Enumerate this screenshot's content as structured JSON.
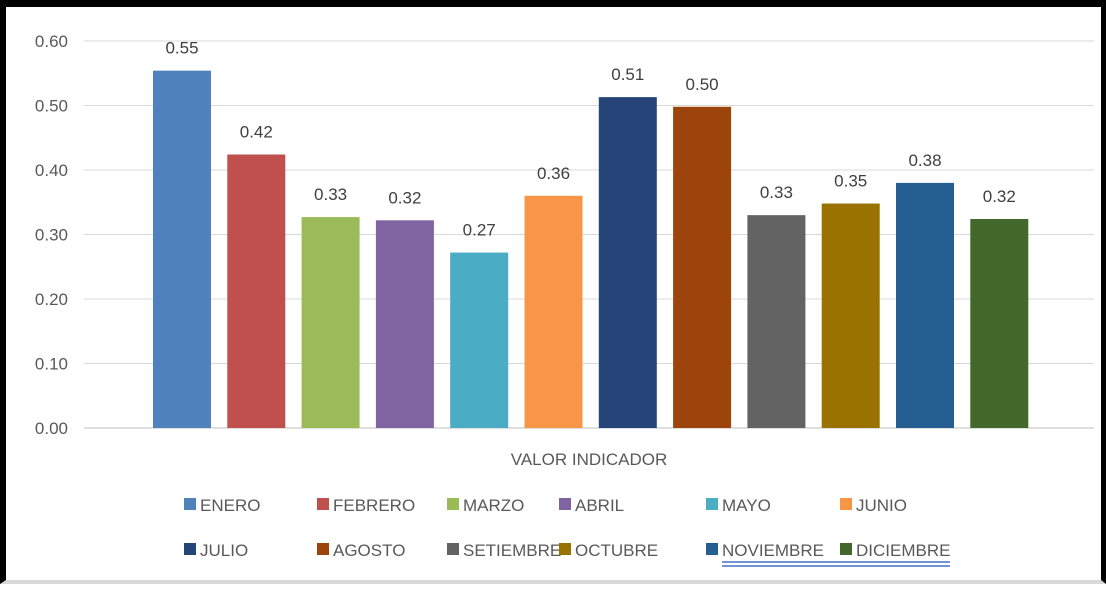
{
  "chart_data": {
    "type": "bar",
    "xlabel": "VALOR INDICADOR",
    "ylabel": "",
    "ylim": [
      0,
      0.6
    ],
    "yticks": [
      "0.00",
      "0.10",
      "0.20",
      "0.30",
      "0.40",
      "0.50",
      "0.60"
    ],
    "grid": true,
    "legend_position": "bottom",
    "series": [
      {
        "name": "ENERO",
        "value": 0.554,
        "label": "0.55",
        "color": "#4F81BD"
      },
      {
        "name": "FEBRERO",
        "value": 0.424,
        "label": "0.42",
        "color": "#C0504D"
      },
      {
        "name": "MARZO",
        "value": 0.327,
        "label": "0.33",
        "color": "#9BBB59"
      },
      {
        "name": "ABRIL",
        "value": 0.322,
        "label": "0.32",
        "color": "#8064A2"
      },
      {
        "name": "MAYO",
        "value": 0.272,
        "label": "0.27",
        "color": "#4BACC6"
      },
      {
        "name": "JUNIO",
        "value": 0.36,
        "label": "0.36",
        "color": "#F79646"
      },
      {
        "name": "JULIO",
        "value": 0.513,
        "label": "0.51",
        "color": "#254478"
      },
      {
        "name": "AGOSTO",
        "value": 0.498,
        "label": "0.50",
        "color": "#9C440B"
      },
      {
        "name": "SETIEMBRE",
        "value": 0.33,
        "label": "0.33",
        "color": "#636363"
      },
      {
        "name": "OCTUBRE",
        "value": 0.348,
        "label": "0.35",
        "color": "#997200"
      },
      {
        "name": "NOVIEMBRE",
        "value": 0.38,
        "label": "0.38",
        "color": "#255E91"
      },
      {
        "name": "DICIEMBRE",
        "value": 0.324,
        "label": "0.32",
        "color": "#43682B"
      }
    ]
  }
}
